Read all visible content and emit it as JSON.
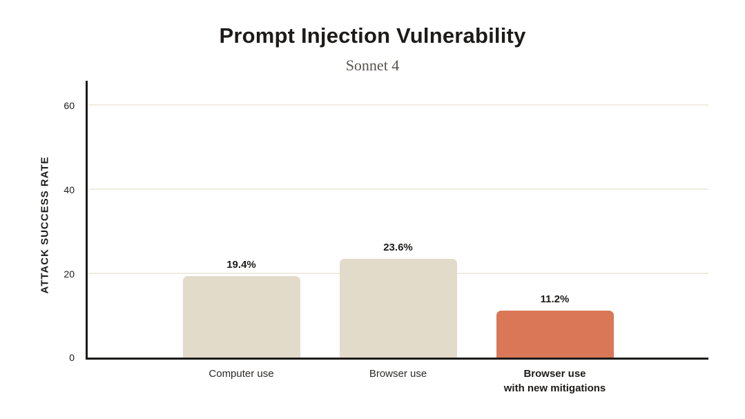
{
  "colors": {
    "background": "#ffffff",
    "ink": "#1d1b19",
    "subtitle_gray": "#57534d",
    "gridline": "#f0ece1",
    "axis": "#1a1a19",
    "bar_beige": "#e3dbca",
    "bar_accent_orange": "#d97757"
  },
  "chart_data": {
    "type": "bar",
    "title": "Prompt Injection Vulnerability",
    "subtitle": "Sonnet 4",
    "xlabel": "",
    "ylabel": "ATTACK SUCCESS RATE",
    "yticks": [
      0,
      20,
      40,
      60
    ],
    "ylim": [
      0,
      66
    ],
    "grid": true,
    "legend": "none",
    "categories": [
      "Computer use",
      "Browser use",
      "Browser use\nwith new mitigations"
    ],
    "values": [
      19.4,
      23.6,
      11.2
    ],
    "bars": [
      {
        "label": "Computer use",
        "value": 19.4,
        "display_value": "19.4%",
        "color": "#e3dbca",
        "label_bold": false
      },
      {
        "label": "Browser use",
        "value": 23.6,
        "display_value": "23.6%",
        "color": "#e3dbca",
        "label_bold": false
      },
      {
        "label": "Browser use\nwith new mitigations",
        "value": 11.2,
        "display_value": "11.2%",
        "color": "#d97757",
        "label_bold": true
      }
    ]
  }
}
